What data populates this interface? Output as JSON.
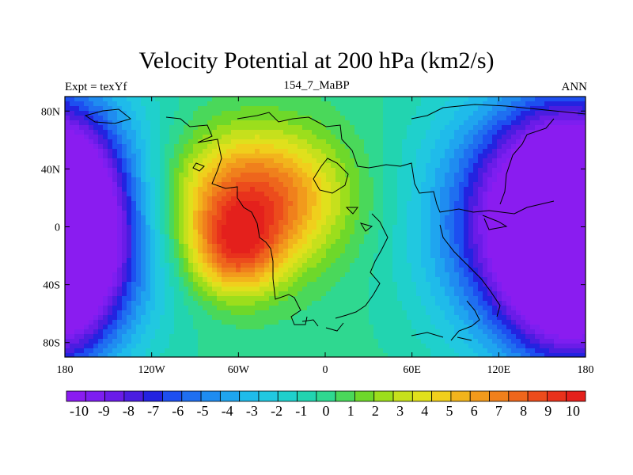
{
  "title": "Velocity Potential at 200 hPa (km2/s)",
  "left_label": "Expt = texYf",
  "center_label": "154_7_MaBP",
  "right_label": "ANN",
  "x_ticks": [
    {
      "value": -180,
      "label": "180"
    },
    {
      "value": -120,
      "label": "120W"
    },
    {
      "value": -60,
      "label": "60W"
    },
    {
      "value": 0,
      "label": "0"
    },
    {
      "value": 60,
      "label": "60E"
    },
    {
      "value": 120,
      "label": "120E"
    },
    {
      "value": 180,
      "label": "180"
    }
  ],
  "y_ticks": [
    {
      "value": 80,
      "label": "80N"
    },
    {
      "value": 40,
      "label": "40N"
    },
    {
      "value": 0,
      "label": "0"
    },
    {
      "value": -40,
      "label": "40S"
    },
    {
      "value": -80,
      "label": "80S"
    }
  ],
  "colorbar": {
    "labels": [
      "-10",
      "-9",
      "-8",
      "-7",
      "-6",
      "-5",
      "-4",
      "-3",
      "-2",
      "-1",
      "0",
      "1",
      "2",
      "3",
      "4",
      "5",
      "6",
      "7",
      "8",
      "9",
      "10"
    ],
    "colors": [
      "#8a1cf0",
      "#7d1ef0",
      "#6a1ce8",
      "#4a1de0",
      "#2323e0",
      "#1d4ff0",
      "#1f6ff0",
      "#1f8cf0",
      "#1fa5ef",
      "#1fbbea",
      "#21c8e0",
      "#1fd0cc",
      "#22d4b0",
      "#2fd890",
      "#4ad85a",
      "#6ed82a",
      "#9cde1c",
      "#c6e01c",
      "#e0e01c",
      "#f0cf1c",
      "#f2b41c",
      "#f29a1c",
      "#f0801c",
      "#ee661c",
      "#ec4c1c",
      "#e8321c",
      "#e4201c"
    ]
  },
  "field": {
    "levels_range": [
      -10,
      10
    ],
    "centers": [
      {
        "lon": -50,
        "lat": 20,
        "amp": 8.5,
        "sx": 42,
        "sy": 32
      },
      {
        "lon": -62,
        "lat": -18,
        "amp": 6.0,
        "sx": 22,
        "sy": 22
      },
      {
        "lon": 155,
        "lat": 5,
        "amp": -10.5,
        "sx": 55,
        "sy": 60
      },
      {
        "lon": -185,
        "lat": -10,
        "amp": -7.5,
        "sx": 30,
        "sy": 55
      },
      {
        "lon": 170,
        "lat": -10,
        "amp": -4.0,
        "sx": 40,
        "sy": 60
      }
    ]
  }
}
